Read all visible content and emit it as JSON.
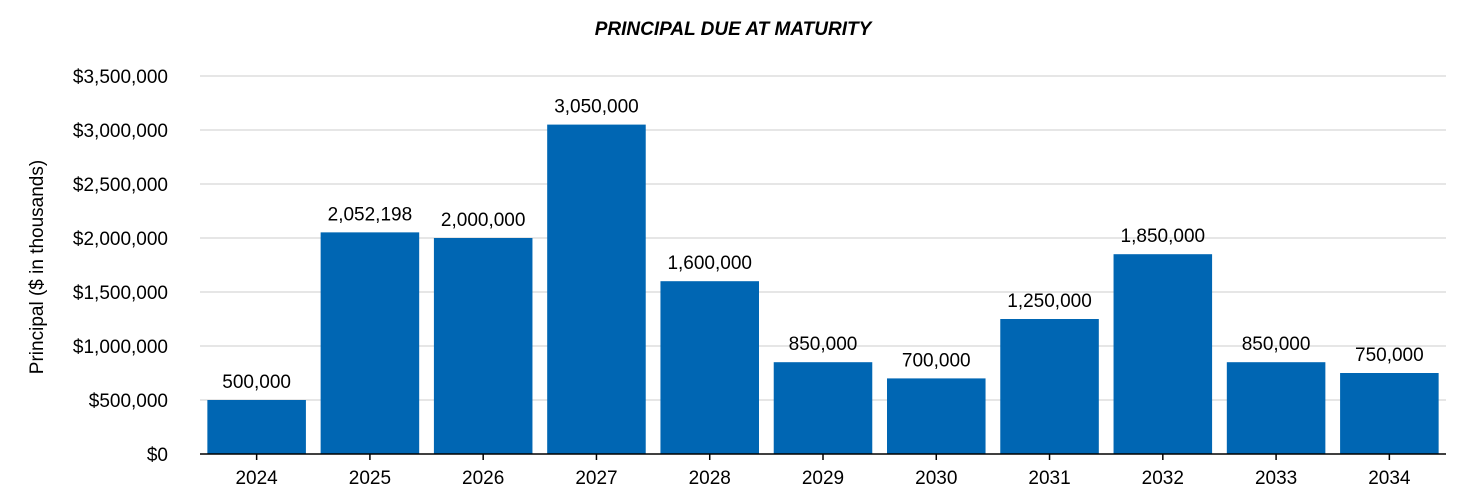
{
  "chart_data": {
    "type": "bar",
    "title": "PRINCIPAL DUE AT MATURITY",
    "xlabel": "",
    "ylabel": "Principal ($ in thousands)",
    "categories": [
      "2024",
      "2025",
      "2026",
      "2027",
      "2028",
      "2029",
      "2030",
      "2031",
      "2032",
      "2033",
      "2034"
    ],
    "values": [
      500000,
      2052198,
      2000000,
      3050000,
      1600000,
      850000,
      700000,
      1250000,
      1850000,
      850000,
      750000
    ],
    "data_labels": [
      "500,000",
      "2,052,198",
      "2,000,000",
      "3,050,000",
      "1,600,000",
      "850,000",
      "700,000",
      "1,250,000",
      "1,850,000",
      "850,000",
      "750,000"
    ],
    "ylim": [
      0,
      3500000
    ],
    "y_ticks": [
      0,
      500000,
      1000000,
      1500000,
      2000000,
      2500000,
      3000000,
      3500000
    ],
    "y_tick_labels": [
      "$0",
      "$500,000",
      "$1,000,000",
      "$1,500,000",
      "$2,000,000",
      "$2,500,000",
      "$3,000,000",
      "$3,500,000"
    ],
    "grid": true,
    "legend": "none",
    "bar_color": "#0066b3",
    "gridline_color": "#e6e6e6"
  }
}
